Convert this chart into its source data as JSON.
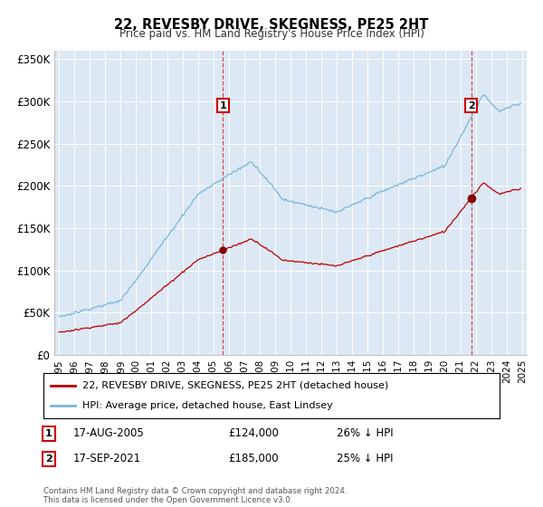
{
  "title": "22, REVESBY DRIVE, SKEGNESS, PE25 2HT",
  "subtitle": "Price paid vs. HM Land Registry's House Price Index (HPI)",
  "hpi_label": "HPI: Average price, detached house, East Lindsey",
  "property_label": "22, REVESBY DRIVE, SKEGNESS, PE25 2HT (detached house)",
  "hpi_color": "#7ab8d8",
  "property_color": "#bb0000",
  "plot_bg": "#dce8f4",
  "ylim": [
    0,
    360000
  ],
  "yticks": [
    0,
    50000,
    100000,
    150000,
    200000,
    250000,
    300000,
    350000
  ],
  "ytick_labels": [
    "£0",
    "£50K",
    "£100K",
    "£150K",
    "£200K",
    "£250K",
    "£300K",
    "£350K"
  ],
  "sale1_x": 2005.625,
  "sale1_y": 124000,
  "sale2_x": 2021.708,
  "sale2_y": 185000,
  "annotation1": {
    "label": "1",
    "date": "17-AUG-2005",
    "price": "£124,000",
    "note": "26% ↓ HPI"
  },
  "annotation2": {
    "label": "2",
    "date": "17-SEP-2021",
    "price": "£185,000",
    "note": "25% ↓ HPI"
  },
  "footer": "Contains HM Land Registry data © Crown copyright and database right 2024.\nThis data is licensed under the Open Government Licence v3.0.",
  "xmin": 1994.7,
  "xmax": 2025.3,
  "xticks": [
    1995,
    1996,
    1997,
    1998,
    1999,
    2000,
    2001,
    2002,
    2003,
    2004,
    2005,
    2006,
    2007,
    2008,
    2009,
    2010,
    2011,
    2012,
    2013,
    2014,
    2015,
    2016,
    2017,
    2018,
    2019,
    2020,
    2021,
    2022,
    2023,
    2024,
    2025
  ]
}
